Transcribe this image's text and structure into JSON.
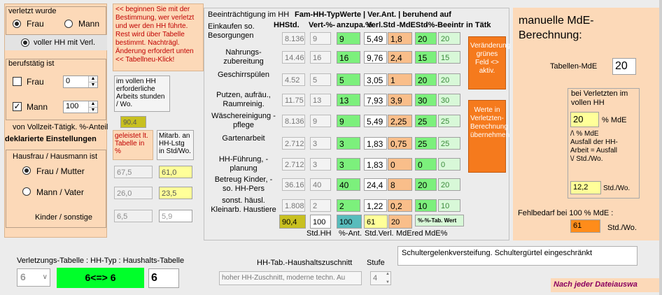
{
  "left": {
    "verletzt_title": "verletzt wurde",
    "frau": "Frau",
    "mann": "Mann",
    "voller_hh": "voller HH mit Verl.",
    "berufstaetig_title": "berufstätig ist",
    "frau_chk": "Frau",
    "mann_chk": "Mann",
    "frau_val": "0",
    "mann_val": "100",
    "vollzeit_label": "von Vollzeit-Tätigk. %-Anteil",
    "deklariert": "deklarierte Einstellungen",
    "hausfrau_title": "Hausfrau / Hausmann ist",
    "frau_mutter": "Frau / Mutter",
    "mann_vater": "Mann / Vater",
    "kinder": "Kinder / sonstige"
  },
  "note": "<< beginnen Sie mit der Bestimmung, wer verletzt und wer den HH führte. Rest wird über Tabelle bestimmt. Nachträgl. Änderung erfordert unten << Tabellneu-Klick!",
  "mid": {
    "stunden_label": "im vollen HH erforderliche Arbeits stunden / Wo.",
    "stunden_val": "90.4",
    "geleistet": "geleistet lt. Tabelle in %",
    "mitarb": "Mitarb. an HH-Lstg in Std/Wo.",
    "pct1": "67,5",
    "pct2": "26,0",
    "pct3": "6,5",
    "std1": "61,0",
    "std2": "23,5",
    "std3": "5,9"
  },
  "table": {
    "title_left": "Beeinträchtigung im HH",
    "title_right": "Fam-HH-TypWerte | Ver.Ant. | beruhend auf",
    "col_headers": [
      "HHStd.",
      "Vert-%-",
      "anzupa.%",
      "Verl.Std",
      "-MdEStd",
      "-%-Beeintr in Tätk"
    ],
    "rows": [
      {
        "label": "Einkaufen so. Besorgungen",
        "hh": "8.136",
        "vert": "9",
        "anz": "9",
        "verl": "5,49",
        "mde": "1,8",
        "pct": "20",
        "tat": "20"
      },
      {
        "label": "Nahrungs- zubereitung",
        "hh": "14.46",
        "vert": "16",
        "anz": "16",
        "verl": "9,76",
        "mde": "2,4",
        "pct": "15",
        "tat": "15"
      },
      {
        "label": "Geschirrspülen",
        "hh": "4.52",
        "vert": "5",
        "anz": "5",
        "verl": "3,05",
        "mde": "1",
        "pct": "20",
        "tat": "20"
      },
      {
        "label": "Putzen, aufräu., Raumreinig.",
        "hh": "11.75",
        "vert": "13",
        "anz": "13",
        "verl": "7,93",
        "mde": "3,9",
        "pct": "30",
        "tat": "30"
      },
      {
        "label": "Wäschereinigung - pflege",
        "hh": "8.136",
        "vert": "9",
        "anz": "9",
        "verl": "5,49",
        "mde": "2,25",
        "pct": "25",
        "tat": "25"
      },
      {
        "label": "Gartenarbeit",
        "hh": "2.712",
        "vert": "3",
        "anz": "3",
        "verl": "1,83",
        "mde": "0,75",
        "pct": "25",
        "tat": "25"
      },
      {
        "label": "HH-Führung, - planung",
        "hh": "2.712",
        "vert": "3",
        "anz": "3",
        "verl": "1,83",
        "mde": "0",
        "pct": "0",
        "tat": "0"
      },
      {
        "label": "Betreug Kinder, -so. HH-Pers",
        "hh": "36.16",
        "vert": "40",
        "anz": "40",
        "verl": "24,4",
        "mde": "8",
        "pct": "20",
        "tat": "20"
      },
      {
        "label": "sonst. häusl. Kleinarb. Haustiere",
        "hh": "1.808",
        "vert": "2",
        "anz": "2",
        "verl": "1,22",
        "mde": "0,2",
        "pct": "10",
        "tat": "10"
      }
    ],
    "sum_hh": "90,4",
    "sum_vert": "100",
    "sum_anz": "100",
    "sum_verl": "61",
    "sum_mde": "20",
    "sum_label": "%-%-Tab. Wert",
    "footer": [
      "Std.HH",
      "%-Ant.",
      "Std.Verl.",
      "MdEred",
      "MdE%"
    ]
  },
  "buttons": {
    "gruen": "Veränderung grünes Feld <> aktiv.",
    "werte": "Werte in Verletzten- Berechnung übernehmen"
  },
  "right": {
    "title": "manuelle MdE-Berechnung:",
    "tabellen_label": "Tabellen-MdE",
    "tabellen_val": "20",
    "bei_verl": "bei Verletzten im vollen HH",
    "mde_val": "20",
    "mde_unit": "% MdE",
    "ausfall_text": "/\\ % MdE Ausfall der HH-Arbeit = Ausfall \\/ Std./Wo.",
    "std_val": "12,2",
    "std_unit": "Std./Wo.",
    "fehl_label": "Fehlbedarf bei 100 % MdE :",
    "fehl_val": "61",
    "fehl_unit": "Std./Wo."
  },
  "bottom": {
    "verl_label": "Verletzungs-Tabelle  : HH-Typ  : Haushalts-Tabelle",
    "combo_val": "6",
    "green_box": "6<=> 6",
    "hh_val": "6",
    "zuschnitt_label": "HH-Tab.-Haushaltszuschnitt",
    "stufe_label": "Stufe",
    "zuschnitt_val": "hoher HH-Zuschnitt, moderne techn. Au",
    "stufe_val": "4",
    "diagnosis": "Schultergelenkversteifung. Schultergürtel eingeschränkt",
    "nach": "Nach jeder Dateiauswa"
  },
  "colors": {
    "panel": "#fcd9b8",
    "green": "#7cf07c",
    "orange": "#f9be8a",
    "brightgreen": "#00ff2a",
    "purple": "#8a0060"
  }
}
